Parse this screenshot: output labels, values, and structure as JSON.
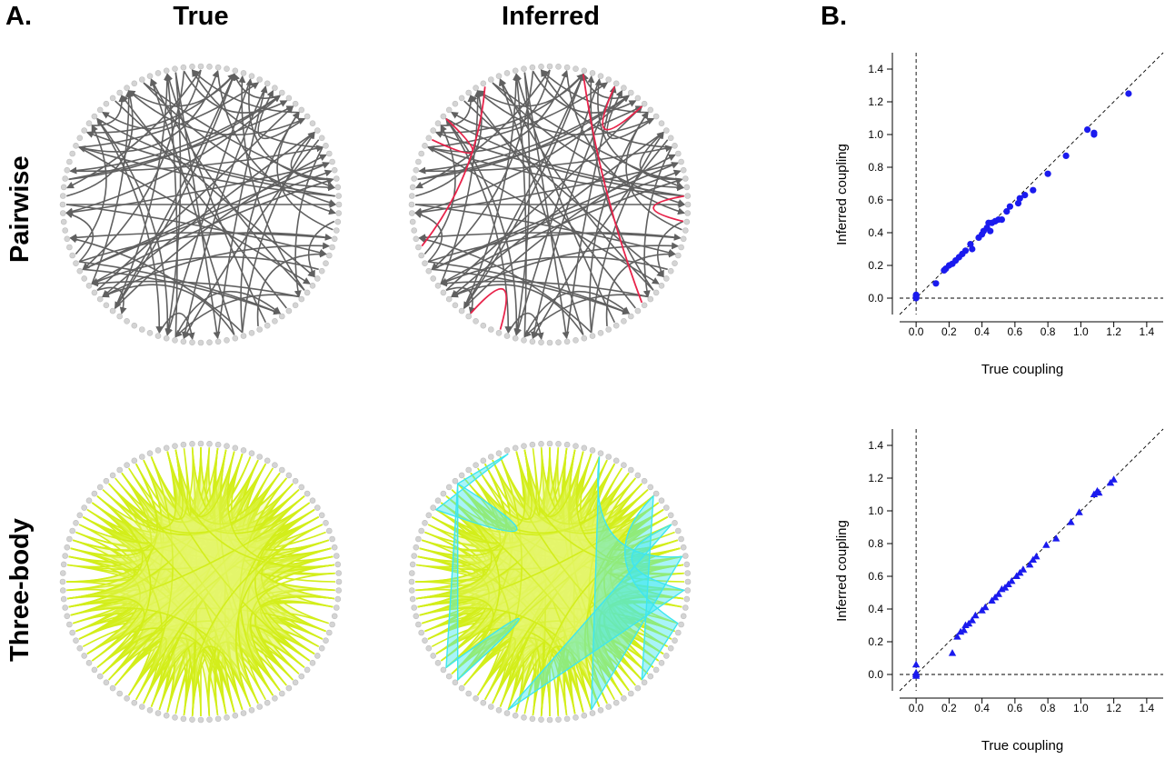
{
  "labels": {
    "panel_a": "A.",
    "panel_b": "B.",
    "col_true": "True",
    "col_inferred": "Inferred",
    "row_pairwise": "Pairwise",
    "row_threebody": "Three-body"
  },
  "colors": {
    "node": "#d4d4d4",
    "pair_edge": "#606060",
    "pair_error": "#e8234a",
    "hyper_fill": "#e6f56e",
    "hyper_line": "#d3ee1a",
    "hyper_error": "#3ee6f0",
    "point": "#1a1aee"
  },
  "chart_data": [
    {
      "type": "scatter",
      "title": "",
      "xlabel": "True coupling",
      "ylabel": "Inferred coupling",
      "xlim": [
        -0.1,
        1.5
      ],
      "ylim": [
        -0.1,
        1.5
      ],
      "xticks": [
        "0.0",
        "0.2",
        "0.4",
        "0.6",
        "0.8",
        "1.0",
        "1.2",
        "1.4"
      ],
      "yticks": [
        "0.0",
        "0.2",
        "0.4",
        "0.6",
        "0.8",
        "1.0",
        "1.2",
        "1.4"
      ],
      "marker": "circle",
      "reference": "identity line and zero lines (dashed)",
      "points": [
        [
          0,
          0
        ],
        [
          0,
          0.01
        ],
        [
          0,
          0.02
        ],
        [
          0,
          0.005
        ],
        [
          0,
          0.015
        ],
        [
          0.12,
          0.09
        ],
        [
          0.17,
          0.17
        ],
        [
          0.18,
          0.18
        ],
        [
          0.2,
          0.2
        ],
        [
          0.22,
          0.21
        ],
        [
          0.24,
          0.23
        ],
        [
          0.26,
          0.25
        ],
        [
          0.28,
          0.27
        ],
        [
          0.3,
          0.29
        ],
        [
          0.33,
          0.33
        ],
        [
          0.34,
          0.3
        ],
        [
          0.38,
          0.37
        ],
        [
          0.4,
          0.39
        ],
        [
          0.41,
          0.41
        ],
        [
          0.43,
          0.43
        ],
        [
          0.44,
          0.46
        ],
        [
          0.45,
          0.41
        ],
        [
          0.46,
          0.46
        ],
        [
          0.48,
          0.47
        ],
        [
          0.5,
          0.48
        ],
        [
          0.52,
          0.48
        ],
        [
          0.55,
          0.53
        ],
        [
          0.57,
          0.56
        ],
        [
          0.62,
          0.58
        ],
        [
          0.63,
          0.61
        ],
        [
          0.66,
          0.63
        ],
        [
          0.71,
          0.66
        ],
        [
          0.8,
          0.76
        ],
        [
          0.91,
          0.87
        ],
        [
          1.04,
          1.03
        ],
        [
          1.08,
          1.0
        ],
        [
          1.08,
          1.01
        ],
        [
          1.29,
          1.25
        ]
      ]
    },
    {
      "type": "scatter",
      "title": "",
      "xlabel": "True coupling",
      "ylabel": "Inferred coupling",
      "xlim": [
        -0.1,
        1.5
      ],
      "ylim": [
        -0.1,
        1.5
      ],
      "xticks": [
        "0.0",
        "0.2",
        "0.4",
        "0.6",
        "0.8",
        "1.0",
        "1.2",
        "1.4"
      ],
      "yticks": [
        "0.0",
        "0.2",
        "0.4",
        "0.6",
        "0.8",
        "1.0",
        "1.2",
        "1.4"
      ],
      "marker": "triangle",
      "reference": "identity line and zero lines (dashed)",
      "points": [
        [
          0,
          0.06
        ],
        [
          0,
          0.0
        ],
        [
          0,
          -0.01
        ],
        [
          0,
          0.01
        ],
        [
          0.22,
          0.13
        ],
        [
          0.25,
          0.23
        ],
        [
          0.27,
          0.26
        ],
        [
          0.29,
          0.27
        ],
        [
          0.3,
          0.3
        ],
        [
          0.32,
          0.31
        ],
        [
          0.34,
          0.33
        ],
        [
          0.36,
          0.36
        ],
        [
          0.4,
          0.39
        ],
        [
          0.42,
          0.41
        ],
        [
          0.46,
          0.45
        ],
        [
          0.48,
          0.47
        ],
        [
          0.5,
          0.49
        ],
        [
          0.52,
          0.52
        ],
        [
          0.54,
          0.53
        ],
        [
          0.56,
          0.55
        ],
        [
          0.58,
          0.57
        ],
        [
          0.61,
          0.6
        ],
        [
          0.63,
          0.62
        ],
        [
          0.65,
          0.64
        ],
        [
          0.69,
          0.67
        ],
        [
          0.71,
          0.7
        ],
        [
          0.73,
          0.72
        ],
        [
          0.79,
          0.79
        ],
        [
          0.85,
          0.83
        ],
        [
          0.94,
          0.93
        ],
        [
          0.99,
          0.99
        ],
        [
          1.08,
          1.1
        ],
        [
          1.1,
          1.12
        ],
        [
          1.11,
          1.11
        ],
        [
          1.18,
          1.17
        ],
        [
          1.2,
          1.19
        ]
      ]
    }
  ]
}
